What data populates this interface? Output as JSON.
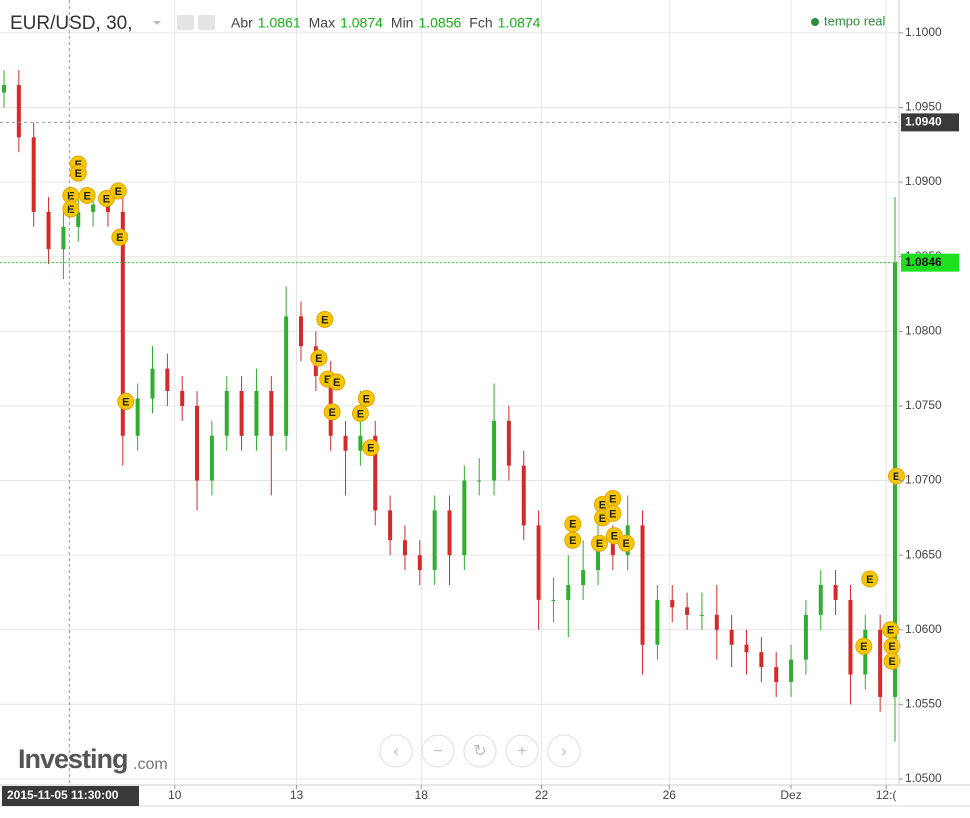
{
  "chart_data": {
    "type": "candlestick",
    "title": "EUR/USD, 30,",
    "ohlc_summary": [
      {
        "name": "Abr",
        "value": 1.0861
      },
      {
        "name": "Max",
        "value": 1.0874
      },
      {
        "name": "Min",
        "value": 1.0856
      },
      {
        "name": "Fch",
        "value": 1.0874
      }
    ],
    "status": "tempo real",
    "logo": {
      "name": "Investing",
      "suffix": ".com"
    },
    "up_color": "#2fae2f",
    "down_color": "#d42a2a",
    "grid": true,
    "categories": [
      null,
      null,
      null,
      null,
      null,
      null,
      null,
      null,
      null,
      null,
      null,
      null,
      null,
      null,
      null,
      null,
      null,
      null,
      null,
      null,
      null,
      null,
      null,
      null,
      null,
      null,
      null,
      null,
      null,
      null,
      null,
      null,
      null,
      null,
      null,
      null,
      null,
      null,
      null,
      null,
      null,
      null,
      null,
      null,
      null,
      null,
      null,
      null,
      null,
      null,
      null,
      null,
      null,
      null,
      null,
      null,
      null,
      null,
      null,
      null,
      null
    ],
    "open": [
      1.096,
      1.0965,
      1.093,
      1.088,
      1.0855,
      1.087,
      1.088,
      1.0885,
      1.088,
      1.073,
      1.0755,
      1.0775,
      1.076,
      1.075,
      1.07,
      1.073,
      1.076,
      1.073,
      1.076,
      1.073,
      1.081,
      1.079,
      1.077,
      1.073,
      1.072,
      1.073,
      1.068,
      1.066,
      1.065,
      1.064,
      1.068,
      1.065,
      1.07,
      1.07,
      1.074,
      1.071,
      1.067,
      1.062,
      1.062,
      1.063,
      1.064,
      1.066,
      1.065,
      1.067,
      1.059,
      1.062,
      1.0615,
      1.061,
      1.061,
      1.06,
      1.059,
      1.0585,
      1.0575,
      1.0565,
      1.058,
      1.061,
      1.063,
      1.062,
      1.057,
      1.06,
      1.0555
    ],
    "high": [
      1.0975,
      1.0975,
      1.094,
      1.089,
      1.088,
      1.089,
      1.0895,
      1.0895,
      1.089,
      1.0765,
      1.079,
      1.0785,
      1.077,
      1.076,
      1.074,
      1.077,
      1.077,
      1.0775,
      1.077,
      1.083,
      1.082,
      1.08,
      1.078,
      1.074,
      1.076,
      1.074,
      1.069,
      1.067,
      1.066,
      1.069,
      1.069,
      1.071,
      1.0715,
      1.0765,
      1.075,
      1.072,
      1.068,
      1.0635,
      1.065,
      1.066,
      1.068,
      1.067,
      1.069,
      1.068,
      1.063,
      1.063,
      1.0625,
      1.0625,
      1.063,
      1.061,
      1.06,
      1.0595,
      1.0585,
      1.059,
      1.062,
      1.064,
      1.064,
      1.063,
      1.061,
      1.061,
      1.089
    ],
    "low": [
      1.095,
      1.092,
      1.087,
      1.0845,
      1.0835,
      1.086,
      1.087,
      1.087,
      1.071,
      1.072,
      1.0745,
      1.075,
      1.074,
      1.068,
      1.069,
      1.072,
      1.072,
      1.072,
      1.069,
      1.072,
      1.078,
      1.076,
      1.072,
      1.069,
      1.071,
      1.067,
      1.065,
      1.064,
      1.063,
      1.063,
      1.063,
      1.064,
      1.069,
      1.069,
      1.07,
      1.066,
      1.06,
      1.0605,
      1.0595,
      1.062,
      1.063,
      1.064,
      1.064,
      1.057,
      1.058,
      1.0605,
      1.06,
      1.06,
      1.058,
      1.0575,
      1.057,
      1.0565,
      1.0555,
      1.0555,
      1.057,
      1.06,
      1.061,
      1.055,
      1.056,
      1.0545,
      1.0525
    ],
    "close": [
      1.0965,
      1.093,
      1.088,
      1.0855,
      1.087,
      1.088,
      1.0885,
      1.088,
      1.073,
      1.0755,
      1.0775,
      1.076,
      1.075,
      1.07,
      1.073,
      1.076,
      1.073,
      1.076,
      1.073,
      1.081,
      1.079,
      1.077,
      1.073,
      1.072,
      1.073,
      1.068,
      1.066,
      1.065,
      1.064,
      1.068,
      1.065,
      1.07,
      1.07,
      1.074,
      1.071,
      1.067,
      1.062,
      1.062,
      1.063,
      1.064,
      1.066,
      1.065,
      1.067,
      1.059,
      1.062,
      1.0615,
      1.061,
      1.061,
      1.06,
      1.059,
      1.0585,
      1.0575,
      1.0565,
      1.058,
      1.061,
      1.063,
      1.062,
      1.057,
      1.06,
      1.0555,
      1.0846
    ],
    "ylim": [
      1.0496,
      1.1022
    ],
    "yticks": [
      {
        "value": 1.05,
        "label": "1.0500"
      },
      {
        "value": 1.055,
        "label": "1.0550"
      },
      {
        "value": 1.06,
        "label": "1.0600"
      },
      {
        "value": 1.065,
        "label": "1.0650"
      },
      {
        "value": 1.07,
        "label": "1.0700"
      },
      {
        "value": 1.075,
        "label": "1.0750"
      },
      {
        "value": 1.08,
        "label": "1.0800"
      },
      {
        "value": 1.085,
        "label": "1.0850"
      },
      {
        "value": 1.09,
        "label": "1.0900"
      },
      {
        "value": 1.095,
        "label": "1.0950"
      },
      {
        "value": 1.1,
        "label": "1.1000"
      }
    ],
    "xticks": [
      {
        "value": 11.5,
        "label": "10"
      },
      {
        "value": 19.7,
        "label": "13"
      },
      {
        "value": 28.1,
        "label": "18"
      },
      {
        "value": 36.2,
        "label": "22"
      },
      {
        "value": 44.8,
        "label": "26"
      },
      {
        "value": 53,
        "label": "Dez"
      },
      {
        "value": 59.4,
        "label": "12:("
      }
    ],
    "crosshair": {
      "x": 4.4,
      "x_label": "2015-11-05 11:30:00",
      "y": {
        "value": 1.094,
        "label": "1.0940"
      }
    },
    "last_price": {
      "value": 1.0846,
      "label": "1.0846"
    },
    "events": [
      {
        "label": "E",
        "x": 5.0,
        "y": 1.0912
      },
      {
        "label": "E",
        "x": 5.0,
        "y": 1.0906
      },
      {
        "label": "E",
        "x": 4.5,
        "y": 1.0891
      },
      {
        "label": "E",
        "x": 4.5,
        "y": 1.0882
      },
      {
        "label": "E",
        "x": 5.6,
        "y": 1.0891
      },
      {
        "label": "E",
        "x": 6.9,
        "y": 1.0889
      },
      {
        "label": "E",
        "x": 7.7,
        "y": 1.0894
      },
      {
        "label": "E",
        "x": 7.8,
        "y": 1.0863
      },
      {
        "label": "E",
        "x": 8.2,
        "y": 1.0753
      },
      {
        "label": "E",
        "x": 21.6,
        "y": 1.0808
      },
      {
        "label": "E",
        "x": 21.2,
        "y": 1.0782
      },
      {
        "label": "E",
        "x": 21.8,
        "y": 1.0768
      },
      {
        "label": "E",
        "x": 22.4,
        "y": 1.0766
      },
      {
        "label": "E",
        "x": 22.1,
        "y": 1.0746
      },
      {
        "label": "E",
        "x": 24.0,
        "y": 1.0745
      },
      {
        "label": "E",
        "x": 24.4,
        "y": 1.0755
      },
      {
        "label": "E",
        "x": 24.7,
        "y": 1.0722
      },
      {
        "label": "E",
        "x": 38.3,
        "y": 1.0671
      },
      {
        "label": "E",
        "x": 38.3,
        "y": 1.066
      },
      {
        "label": "E",
        "x": 40.3,
        "y": 1.0684
      },
      {
        "label": "E",
        "x": 40.3,
        "y": 1.0675
      },
      {
        "label": "E",
        "x": 41.0,
        "y": 1.0688
      },
      {
        "label": "E",
        "x": 41.0,
        "y": 1.0678
      },
      {
        "label": "E",
        "x": 41.1,
        "y": 1.0663
      },
      {
        "label": "E",
        "x": 40.1,
        "y": 1.0658
      },
      {
        "label": "E",
        "x": 41.9,
        "y": 1.0658
      },
      {
        "label": "E",
        "x": 58.3,
        "y": 1.0634
      },
      {
        "label": "E",
        "x": 57.9,
        "y": 1.0589
      },
      {
        "label": "E",
        "x": 59.7,
        "y": 1.06
      },
      {
        "label": "E",
        "x": 59.8,
        "y": 1.0589
      },
      {
        "label": "E",
        "x": 59.8,
        "y": 1.0579
      },
      {
        "label": "E",
        "x": 60.1,
        "y": 1.0703
      }
    ]
  }
}
